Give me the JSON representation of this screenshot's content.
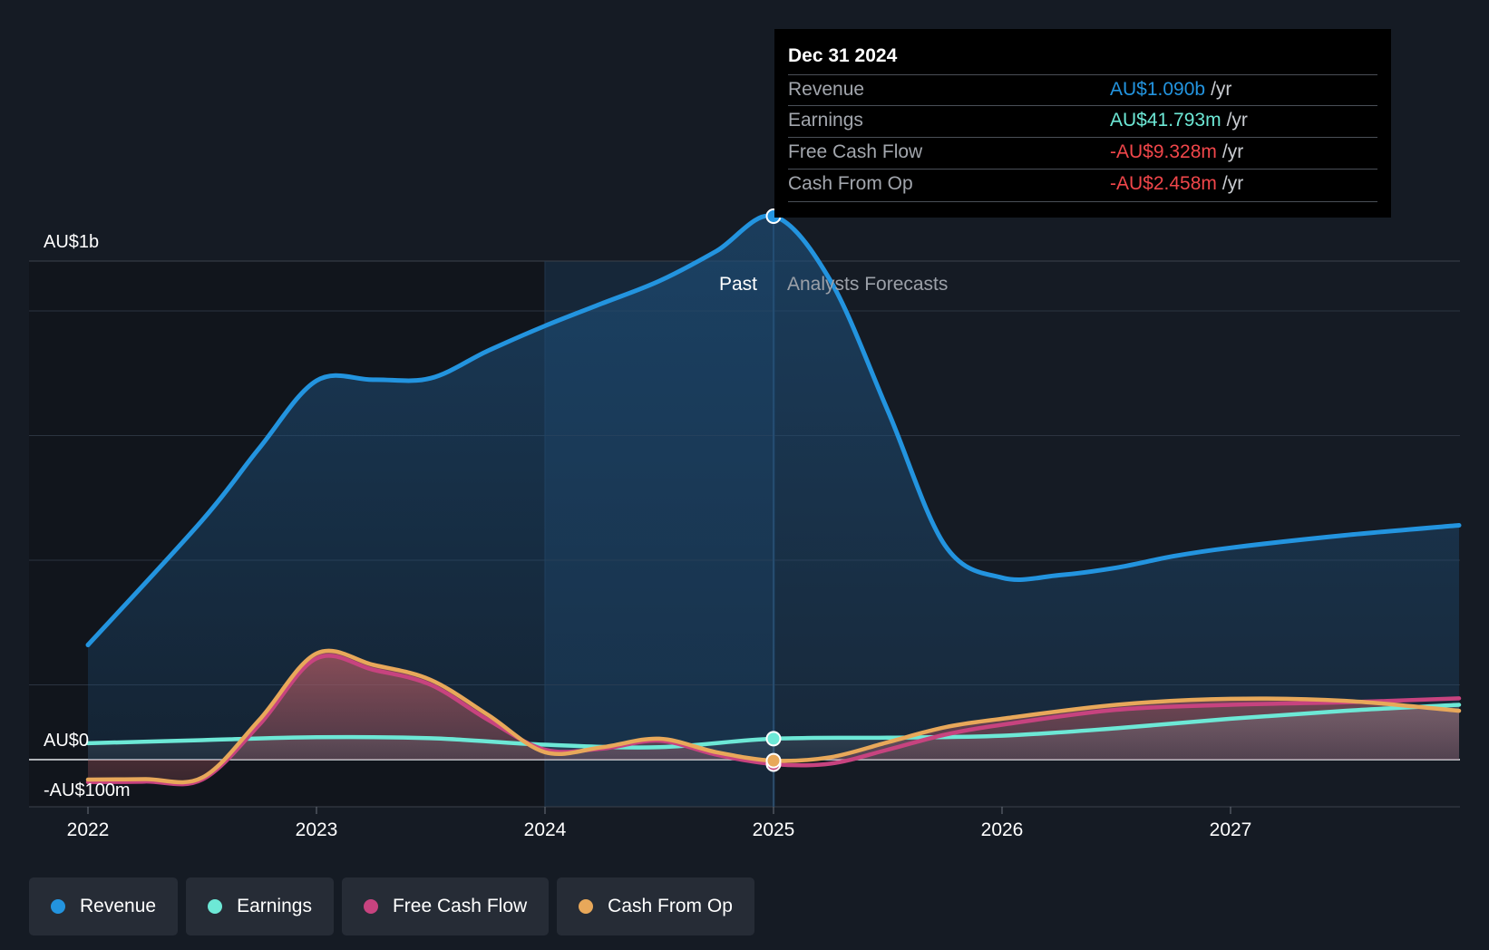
{
  "chart_data": {
    "type": "area",
    "title": "",
    "xlabel": "",
    "ylabel": "",
    "x_ticks": [
      "2022",
      "2023",
      "2024",
      "2025",
      "2026",
      "2027"
    ],
    "y_ticks": [
      {
        "value": 1000,
        "label": "AU$1b"
      },
      {
        "value": 0,
        "label": "AU$0"
      },
      {
        "value": -100,
        "label": "-AU$100m"
      }
    ],
    "ylim": [
      -100,
      1100
    ],
    "xlim": [
      2021.75,
      2028.0
    ],
    "unit": "AU$ millions",
    "divider": {
      "x": 2025.0,
      "past_label": "Past",
      "forecast_label": "Analysts Forecasts"
    },
    "highlight_range": [
      2024.0,
      2025.0
    ],
    "series": [
      {
        "name": "Revenue",
        "color": "#2394df",
        "points": [
          [
            2022.0,
            230
          ],
          [
            2022.5,
            480
          ],
          [
            2022.75,
            625
          ],
          [
            2023.0,
            760
          ],
          [
            2023.25,
            762
          ],
          [
            2023.5,
            765
          ],
          [
            2023.75,
            820
          ],
          [
            2024.0,
            870
          ],
          [
            2024.25,
            915
          ],
          [
            2024.5,
            960
          ],
          [
            2024.75,
            1020
          ],
          [
            2025.0,
            1090
          ],
          [
            2025.25,
            960
          ],
          [
            2025.5,
            700
          ],
          [
            2025.75,
            430
          ],
          [
            2026.0,
            365
          ],
          [
            2026.25,
            370
          ],
          [
            2026.5,
            385
          ],
          [
            2026.75,
            408
          ],
          [
            2027.0,
            425
          ],
          [
            2027.5,
            450
          ],
          [
            2028.0,
            470
          ]
        ]
      },
      {
        "name": "Earnings",
        "color": "#6de8d6",
        "points": [
          [
            2022.0,
            33
          ],
          [
            2022.5,
            39
          ],
          [
            2023.0,
            45
          ],
          [
            2023.5,
            43
          ],
          [
            2024.0,
            30
          ],
          [
            2024.5,
            25
          ],
          [
            2025.0,
            42
          ],
          [
            2025.5,
            44
          ],
          [
            2026.0,
            48
          ],
          [
            2026.5,
            63
          ],
          [
            2027.0,
            82
          ],
          [
            2027.5,
            98
          ],
          [
            2028.0,
            110
          ]
        ]
      },
      {
        "name": "Free Cash Flow",
        "color": "#c7437f",
        "points": [
          [
            2022.0,
            -45
          ],
          [
            2022.25,
            -44
          ],
          [
            2022.5,
            -40
          ],
          [
            2022.75,
            70
          ],
          [
            2023.0,
            203
          ],
          [
            2023.25,
            180
          ],
          [
            2023.5,
            150
          ],
          [
            2023.75,
            80
          ],
          [
            2024.0,
            20
          ],
          [
            2024.25,
            22
          ],
          [
            2024.5,
            38
          ],
          [
            2024.75,
            10
          ],
          [
            2025.0,
            -9
          ],
          [
            2025.25,
            -8
          ],
          [
            2025.5,
            20
          ],
          [
            2025.75,
            50
          ],
          [
            2026.0,
            70
          ],
          [
            2026.5,
            100
          ],
          [
            2027.0,
            110
          ],
          [
            2027.5,
            115
          ],
          [
            2028.0,
            123
          ]
        ]
      },
      {
        "name": "Cash From Op",
        "color": "#e8a85a",
        "points": [
          [
            2022.0,
            -40
          ],
          [
            2022.25,
            -39
          ],
          [
            2022.5,
            -36
          ],
          [
            2022.75,
            80
          ],
          [
            2023.0,
            213
          ],
          [
            2023.25,
            190
          ],
          [
            2023.5,
            160
          ],
          [
            2023.75,
            90
          ],
          [
            2024.0,
            15
          ],
          [
            2024.25,
            25
          ],
          [
            2024.5,
            42
          ],
          [
            2024.75,
            15
          ],
          [
            2025.0,
            -2
          ],
          [
            2025.25,
            5
          ],
          [
            2025.5,
            35
          ],
          [
            2025.75,
            65
          ],
          [
            2026.0,
            82
          ],
          [
            2026.5,
            110
          ],
          [
            2027.0,
            122
          ],
          [
            2027.5,
            118
          ],
          [
            2028.0,
            98
          ]
        ]
      }
    ]
  },
  "tooltip": {
    "date": "Dec 31 2024",
    "rows": [
      {
        "label": "Revenue",
        "value": "AU$1.090b",
        "unit": "/yr",
        "color": "#2394df"
      },
      {
        "label": "Earnings",
        "value": "AU$41.793m",
        "unit": "/yr",
        "color": "#6de8d6"
      },
      {
        "label": "Free Cash Flow",
        "value": "-AU$9.328m",
        "unit": "/yr",
        "color": "#f0464a"
      },
      {
        "label": "Cash From Op",
        "value": "-AU$2.458m",
        "unit": "/yr",
        "color": "#f0464a"
      }
    ]
  },
  "legend": [
    {
      "label": "Revenue",
      "color": "#2394df"
    },
    {
      "label": "Earnings",
      "color": "#6de8d6"
    },
    {
      "label": "Free Cash Flow",
      "color": "#c7437f"
    },
    {
      "label": "Cash From Op",
      "color": "#e8a85a"
    }
  ]
}
